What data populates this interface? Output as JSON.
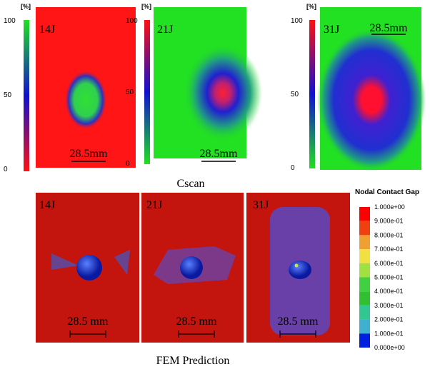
{
  "cscan": {
    "caption": "Cscan",
    "unit": "[%]",
    "ticks": [
      100,
      50,
      0
    ],
    "panels": [
      {
        "label": "14J",
        "scale": "28.5mm"
      },
      {
        "label": "21J",
        "scale": "28.5mm"
      },
      {
        "label": "31J",
        "scale": "28.5mm"
      }
    ]
  },
  "fem": {
    "caption": "FEM Prediction",
    "panels": [
      {
        "label": "14J",
        "scale": "28.5 mm"
      },
      {
        "label": "21J",
        "scale": "28.5 mm"
      },
      {
        "label": "31J",
        "scale": "28.5 mm"
      }
    ],
    "legend": {
      "title": "Nodal Contact Gap",
      "labels": [
        "1.000e+00",
        "9.000e-01",
        "8.000e-01",
        "7.000e-01",
        "6.000e-01",
        "5.000e-01",
        "4.000e-01",
        "3.000e-01",
        "2.000e-01",
        "1.000e-01",
        "0.000e+00"
      ]
    }
  }
}
